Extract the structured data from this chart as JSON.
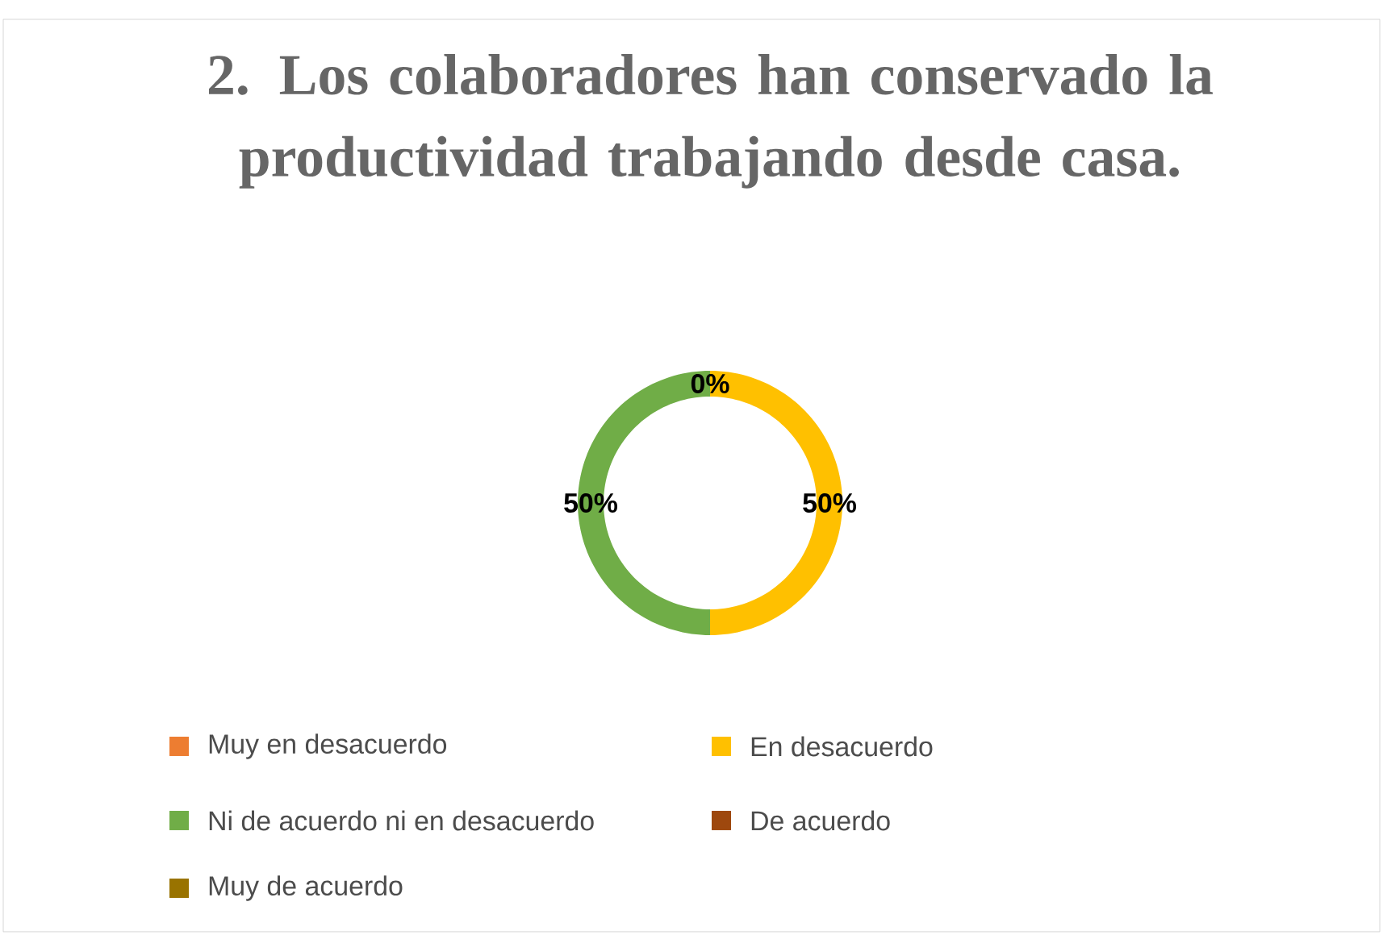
{
  "chart_data": {
    "type": "donut",
    "title": "2. Los colaboradores han conservado la productividad trabajando desde casa.",
    "categories": [
      "Muy en desacuerdo",
      "En desacuerdo",
      "Ni de acuerdo ni en desacuerdo",
      "De acuerdo",
      "Muy de acuerdo"
    ],
    "values": [
      0,
      50,
      50,
      0,
      0
    ],
    "colors": [
      "#ed7d31",
      "#ffc000",
      "#70ad47",
      "#9e480e",
      "#997300"
    ],
    "value_labels": [
      "0%",
      "50%",
      "50%",
      null,
      null
    ],
    "legend": "bottom"
  }
}
